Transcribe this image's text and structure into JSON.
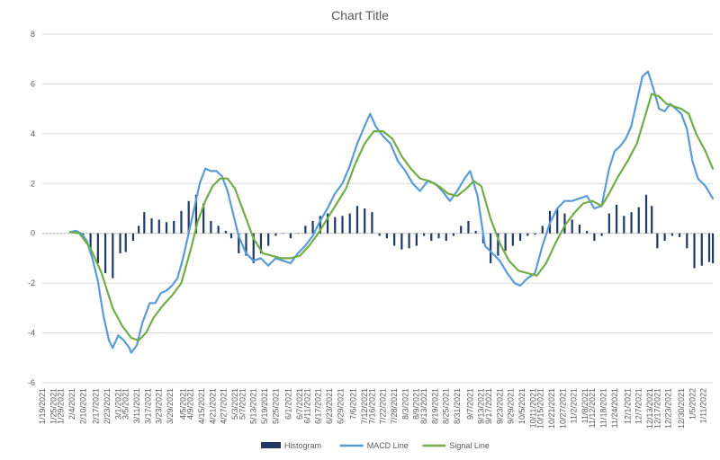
{
  "chart_data": {
    "type": "line",
    "title": "Chart Title",
    "xlabel": "",
    "ylabel": "",
    "ylim": [
      -6,
      8
    ],
    "yticks": [
      -6,
      -4,
      -2,
      0,
      2,
      4,
      6,
      8
    ],
    "grid": true,
    "legend_position": "bottom",
    "x_start": "1/19/2021",
    "x_end": "1/16/2022",
    "x_tick_labels": [
      "1/19/2021",
      "1/25/2021",
      "1/29/2021",
      "2/4/2021",
      "2/10/2021",
      "2/17/2021",
      "2/23/2021",
      "3/1/2021",
      "3/5/2021",
      "3/11/2021",
      "3/17/2021",
      "3/23/2021",
      "3/29/2021",
      "4/5/2021",
      "4/9/2021",
      "4/15/2021",
      "4/21/2021",
      "4/27/2021",
      "5/3/2021",
      "5/7/2021",
      "5/13/2021",
      "5/19/2021",
      "5/25/2021",
      "6/1/2021",
      "6/7/2021",
      "6/11/2021",
      "6/17/2021",
      "6/23/2021",
      "6/29/2021",
      "7/6/2021",
      "7/12/2021",
      "7/16/2021",
      "7/22/2021",
      "7/28/2021",
      "8/3/2021",
      "8/9/2021",
      "8/13/2021",
      "8/19/2021",
      "8/25/2021",
      "8/31/2021",
      "9/7/2021",
      "9/13/2021",
      "9/17/2021",
      "9/23/2021",
      "9/29/2021",
      "10/5/2021",
      "10/11/2021",
      "10/15/2021",
      "10/21/2021",
      "10/27/2021",
      "11/2/2021",
      "11/8/2021",
      "11/12/2021",
      "11/18/2021",
      "11/24/2021",
      "12/1/2021",
      "12/7/2021",
      "12/13/2021",
      "12/17/2021",
      "12/23/2021",
      "12/30/2021",
      "1/5/2022",
      "1/11/2022"
    ],
    "series": [
      {
        "name": "Histogram",
        "kind": "bar",
        "color": "#203864",
        "points": [
          [
            "2/5/2021",
            0.05
          ],
          [
            "2/10/2021",
            -0.2
          ],
          [
            "2/14/2021",
            -0.8
          ],
          [
            "2/18/2021",
            -1.2
          ],
          [
            "2/22/2021",
            -1.6
          ],
          [
            "2/26/2021",
            -1.8
          ],
          [
            "3/2/2021",
            -0.8
          ],
          [
            "3/5/2021",
            -0.75
          ],
          [
            "3/9/2021",
            -0.3
          ],
          [
            "3/12/2021",
            0.3
          ],
          [
            "3/15/2021",
            0.85
          ],
          [
            "3/19/2021",
            0.6
          ],
          [
            "3/23/2021",
            0.55
          ],
          [
            "3/27/2021",
            0.45
          ],
          [
            "3/31/2021",
            0.5
          ],
          [
            "4/4/2021",
            0.9
          ],
          [
            "4/8/2021",
            1.3
          ],
          [
            "4/12/2021",
            1.55
          ],
          [
            "4/16/2021",
            1.2
          ],
          [
            "4/20/2021",
            0.5
          ],
          [
            "4/24/2021",
            0.3
          ],
          [
            "4/28/2021",
            0.1
          ],
          [
            "5/1/2021",
            -0.2
          ],
          [
            "5/5/2021",
            -0.8
          ],
          [
            "5/9/2021",
            -0.9
          ],
          [
            "5/13/2021",
            -1.2
          ],
          [
            "5/17/2021",
            -0.8
          ],
          [
            "5/21/2021",
            -0.5
          ],
          [
            "5/25/2021",
            -0.1
          ],
          [
            "5/29/2021",
            0.0
          ],
          [
            "6/2/2021",
            -0.2
          ],
          [
            "6/6/2021",
            0.0
          ],
          [
            "6/10/2021",
            0.3
          ],
          [
            "6/14/2021",
            0.5
          ],
          [
            "6/18/2021",
            0.7
          ],
          [
            "6/22/2021",
            0.8
          ],
          [
            "6/26/2021",
            0.65
          ],
          [
            "6/30/2021",
            0.7
          ],
          [
            "7/4/2021",
            0.8
          ],
          [
            "7/8/2021",
            1.1
          ],
          [
            "7/12/2021",
            1.0
          ],
          [
            "7/16/2021",
            0.85
          ],
          [
            "7/20/2021",
            -0.1
          ],
          [
            "7/24/2021",
            -0.2
          ],
          [
            "7/28/2021",
            -0.5
          ],
          [
            "8/1/2021",
            -0.65
          ],
          [
            "8/5/2021",
            -0.6
          ],
          [
            "8/9/2021",
            -0.5
          ],
          [
            "8/13/2021",
            -0.1
          ],
          [
            "8/17/2021",
            -0.3
          ],
          [
            "8/21/2021",
            -0.2
          ],
          [
            "8/25/2021",
            -0.3
          ],
          [
            "8/29/2021",
            -0.1
          ],
          [
            "9/2/2021",
            0.3
          ],
          [
            "9/6/2021",
            0.5
          ],
          [
            "9/10/2021",
            0.1
          ],
          [
            "9/14/2021",
            -0.4
          ],
          [
            "9/18/2021",
            -1.2
          ],
          [
            "9/22/2021",
            -0.9
          ],
          [
            "9/26/2021",
            -0.7
          ],
          [
            "9/30/2021",
            -0.5
          ],
          [
            "10/4/2021",
            -0.3
          ],
          [
            "10/8/2021",
            -0.1
          ],
          [
            "10/12/2021",
            -0.05
          ],
          [
            "10/16/2021",
            0.3
          ],
          [
            "10/20/2021",
            0.9
          ],
          [
            "10/24/2021",
            1.0
          ],
          [
            "10/28/2021",
            0.8
          ],
          [
            "11/1/2021",
            0.55
          ],
          [
            "11/5/2021",
            0.35
          ],
          [
            "11/9/2021",
            0.1
          ],
          [
            "11/13/2021",
            -0.3
          ],
          [
            "11/17/2021",
            -0.1
          ],
          [
            "11/21/2021",
            0.8
          ],
          [
            "11/25/2021",
            1.15
          ],
          [
            "11/29/2021",
            0.7
          ],
          [
            "12/3/2021",
            0.85
          ],
          [
            "12/7/2021",
            1.05
          ],
          [
            "12/11/2021",
            1.55
          ],
          [
            "12/14/2021",
            1.1
          ],
          [
            "12/17/2021",
            -0.6
          ],
          [
            "12/21/2021",
            -0.3
          ],
          [
            "12/25/2021",
            -0.1
          ],
          [
            "12/29/2021",
            -0.15
          ],
          [
            "1/2/2022",
            -0.6
          ],
          [
            "1/6/2022",
            -1.4
          ],
          [
            "1/10/2022",
            -1.3
          ],
          [
            "1/14/2022",
            -1.15
          ],
          [
            "1/16/2022",
            -1.2
          ]
        ]
      },
      {
        "name": "MACD Line",
        "kind": "line",
        "color": "#5b9bd5",
        "points": [
          [
            "2/3/2021",
            0.05
          ],
          [
            "2/6/2021",
            0.1
          ],
          [
            "2/9/2021",
            0.0
          ],
          [
            "2/12/2021",
            -0.3
          ],
          [
            "2/15/2021",
            -1.0
          ],
          [
            "2/18/2021",
            -1.9
          ],
          [
            "2/21/2021",
            -3.3
          ],
          [
            "2/24/2021",
            -4.3
          ],
          [
            "2/26/2021",
            -4.6
          ],
          [
            "3/1/2021",
            -4.1
          ],
          [
            "3/4/2021",
            -4.3
          ],
          [
            "3/7/2021",
            -4.6
          ],
          [
            "3/8/2021",
            -4.8
          ],
          [
            "3/11/2021",
            -4.5
          ],
          [
            "3/14/2021",
            -3.6
          ],
          [
            "3/18/2021",
            -2.8
          ],
          [
            "3/21/2021",
            -2.8
          ],
          [
            "3/24/2021",
            -2.4
          ],
          [
            "3/27/2021",
            -2.3
          ],
          [
            "3/30/2021",
            -2.1
          ],
          [
            "4/2/2021",
            -1.8
          ],
          [
            "4/5/2021",
            -1.0
          ],
          [
            "4/8/2021",
            0.0
          ],
          [
            "4/11/2021",
            1.0
          ],
          [
            "4/14/2021",
            2.0
          ],
          [
            "4/17/2021",
            2.6
          ],
          [
            "4/20/2021",
            2.5
          ],
          [
            "4/23/2021",
            2.5
          ],
          [
            "4/26/2021",
            2.3
          ],
          [
            "4/29/2021",
            1.7
          ],
          [
            "5/2/2021",
            0.8
          ],
          [
            "5/5/2021",
            -0.1
          ],
          [
            "5/9/2021",
            -0.8
          ],
          [
            "5/13/2021",
            -1.1
          ],
          [
            "5/17/2021",
            -1.0
          ],
          [
            "5/21/2021",
            -1.3
          ],
          [
            "5/25/2021",
            -1.0
          ],
          [
            "5/29/2021",
            -1.1
          ],
          [
            "6/2/2021",
            -1.2
          ],
          [
            "6/6/2021",
            -0.8
          ],
          [
            "6/10/2021",
            -0.5
          ],
          [
            "6/14/2021",
            -0.1
          ],
          [
            "6/18/2021",
            0.5
          ],
          [
            "6/22/2021",
            1.0
          ],
          [
            "6/26/2021",
            1.6
          ],
          [
            "6/30/2021",
            2.0
          ],
          [
            "7/4/2021",
            2.7
          ],
          [
            "7/8/2021",
            3.6
          ],
          [
            "7/12/2021",
            4.3
          ],
          [
            "7/15/2021",
            4.8
          ],
          [
            "7/18/2021",
            4.3
          ],
          [
            "7/22/2021",
            3.9
          ],
          [
            "7/26/2021",
            3.6
          ],
          [
            "7/30/2021",
            2.9
          ],
          [
            "8/3/2021",
            2.5
          ],
          [
            "8/7/2021",
            2.0
          ],
          [
            "8/11/2021",
            1.7
          ],
          [
            "8/15/2021",
            2.1
          ],
          [
            "8/19/2021",
            2.0
          ],
          [
            "8/23/2021",
            1.7
          ],
          [
            "8/27/2021",
            1.3
          ],
          [
            "8/31/2021",
            1.7
          ],
          [
            "9/4/2021",
            2.2
          ],
          [
            "9/7/2021",
            2.5
          ],
          [
            "9/11/2021",
            1.5
          ],
          [
            "9/15/2021",
            -0.5
          ],
          [
            "9/19/2021",
            -0.8
          ],
          [
            "9/23/2021",
            -1.1
          ],
          [
            "9/27/2021",
            -1.6
          ],
          [
            "10/1/2021",
            -2.0
          ],
          [
            "10/4/2021",
            -2.1
          ],
          [
            "10/8/2021",
            -1.8
          ],
          [
            "10/12/2021",
            -1.6
          ],
          [
            "10/16/2021",
            -0.5
          ],
          [
            "10/20/2021",
            0.4
          ],
          [
            "10/24/2021",
            1.0
          ],
          [
            "10/28/2021",
            1.3
          ],
          [
            "11/1/2021",
            1.3
          ],
          [
            "11/5/2021",
            1.4
          ],
          [
            "11/9/2021",
            1.5
          ],
          [
            "11/13/2021",
            1.0
          ],
          [
            "11/17/2021",
            1.1
          ],
          [
            "11/21/2021",
            2.6
          ],
          [
            "11/24/2021",
            3.3
          ],
          [
            "11/27/2021",
            3.5
          ],
          [
            "11/30/2021",
            3.8
          ],
          [
            "12/3/2021",
            4.3
          ],
          [
            "12/6/2021",
            5.3
          ],
          [
            "12/9/2021",
            6.3
          ],
          [
            "12/12/2021",
            6.5
          ],
          [
            "12/15/2021",
            5.8
          ],
          [
            "12/18/2021",
            5.0
          ],
          [
            "12/21/2021",
            4.9
          ],
          [
            "12/24/2021",
            5.2
          ],
          [
            "12/27/2021",
            5.0
          ],
          [
            "12/30/2021",
            4.8
          ],
          [
            "1/2/2022",
            4.2
          ],
          [
            "1/5/2022",
            2.9
          ],
          [
            "1/8/2022",
            2.2
          ],
          [
            "1/12/2022",
            1.9
          ],
          [
            "1/16/2022",
            1.4
          ]
        ]
      },
      {
        "name": "Signal Line",
        "kind": "line",
        "color": "#70ad47",
        "points": [
          [
            "2/3/2021",
            0.05
          ],
          [
            "2/8/2021",
            0.0
          ],
          [
            "2/14/2021",
            -0.6
          ],
          [
            "2/20/2021",
            -1.6
          ],
          [
            "2/26/2021",
            -3.0
          ],
          [
            "3/3/2021",
            -3.7
          ],
          [
            "3/8/2021",
            -4.2
          ],
          [
            "3/12/2021",
            -4.3
          ],
          [
            "3/16/2021",
            -4.0
          ],
          [
            "3/20/2021",
            -3.4
          ],
          [
            "3/25/2021",
            -2.9
          ],
          [
            "3/30/2021",
            -2.5
          ],
          [
            "4/4/2021",
            -2.0
          ],
          [
            "4/9/2021",
            -0.7
          ],
          [
            "4/13/2021",
            0.5
          ],
          [
            "4/17/2021",
            1.3
          ],
          [
            "4/21/2021",
            1.9
          ],
          [
            "4/25/2021",
            2.2
          ],
          [
            "4/29/2021",
            2.2
          ],
          [
            "5/3/2021",
            1.8
          ],
          [
            "5/8/2021",
            0.8
          ],
          [
            "5/13/2021",
            -0.2
          ],
          [
            "5/18/2021",
            -0.8
          ],
          [
            "5/23/2021",
            -0.9
          ],
          [
            "5/28/2021",
            -1.0
          ],
          [
            "6/2/2021",
            -1.0
          ],
          [
            "6/7/2021",
            -0.9
          ],
          [
            "6/12/2021",
            -0.5
          ],
          [
            "6/17/2021",
            0.0
          ],
          [
            "6/22/2021",
            0.6
          ],
          [
            "6/27/2021",
            1.2
          ],
          [
            "7/2/2021",
            1.8
          ],
          [
            "7/7/2021",
            2.8
          ],
          [
            "7/12/2021",
            3.6
          ],
          [
            "7/17/2021",
            4.1
          ],
          [
            "7/22/2021",
            4.1
          ],
          [
            "7/27/2021",
            3.8
          ],
          [
            "8/1/2021",
            3.1
          ],
          [
            "8/6/2021",
            2.6
          ],
          [
            "8/11/2021",
            2.2
          ],
          [
            "8/16/2021",
            2.1
          ],
          [
            "8/21/2021",
            1.9
          ],
          [
            "8/26/2021",
            1.6
          ],
          [
            "8/31/2021",
            1.5
          ],
          [
            "9/5/2021",
            1.8
          ],
          [
            "9/9/2021",
            2.1
          ],
          [
            "9/13/2021",
            1.9
          ],
          [
            "9/18/2021",
            0.6
          ],
          [
            "9/23/2021",
            -0.4
          ],
          [
            "9/28/2021",
            -1.1
          ],
          [
            "10/3/2021",
            -1.5
          ],
          [
            "10/8/2021",
            -1.6
          ],
          [
            "10/13/2021",
            -1.7
          ],
          [
            "10/18/2021",
            -1.2
          ],
          [
            "10/23/2021",
            -0.4
          ],
          [
            "10/28/2021",
            0.3
          ],
          [
            "11/2/2021",
            0.8
          ],
          [
            "11/7/2021",
            1.2
          ],
          [
            "11/12/2021",
            1.3
          ],
          [
            "11/17/2021",
            1.1
          ],
          [
            "11/21/2021",
            1.6
          ],
          [
            "11/26/2021",
            2.3
          ],
          [
            "12/1/2021",
            2.9
          ],
          [
            "12/6/2021",
            3.6
          ],
          [
            "12/10/2021",
            4.6
          ],
          [
            "12/14/2021",
            5.6
          ],
          [
            "12/18/2021",
            5.5
          ],
          [
            "12/22/2021",
            5.2
          ],
          [
            "12/26/2021",
            5.1
          ],
          [
            "12/30/2021",
            5.0
          ],
          [
            "1/3/2022",
            4.8
          ],
          [
            "1/7/2022",
            4.0
          ],
          [
            "1/12/2022",
            3.3
          ],
          [
            "1/16/2022",
            2.6
          ]
        ]
      }
    ]
  }
}
